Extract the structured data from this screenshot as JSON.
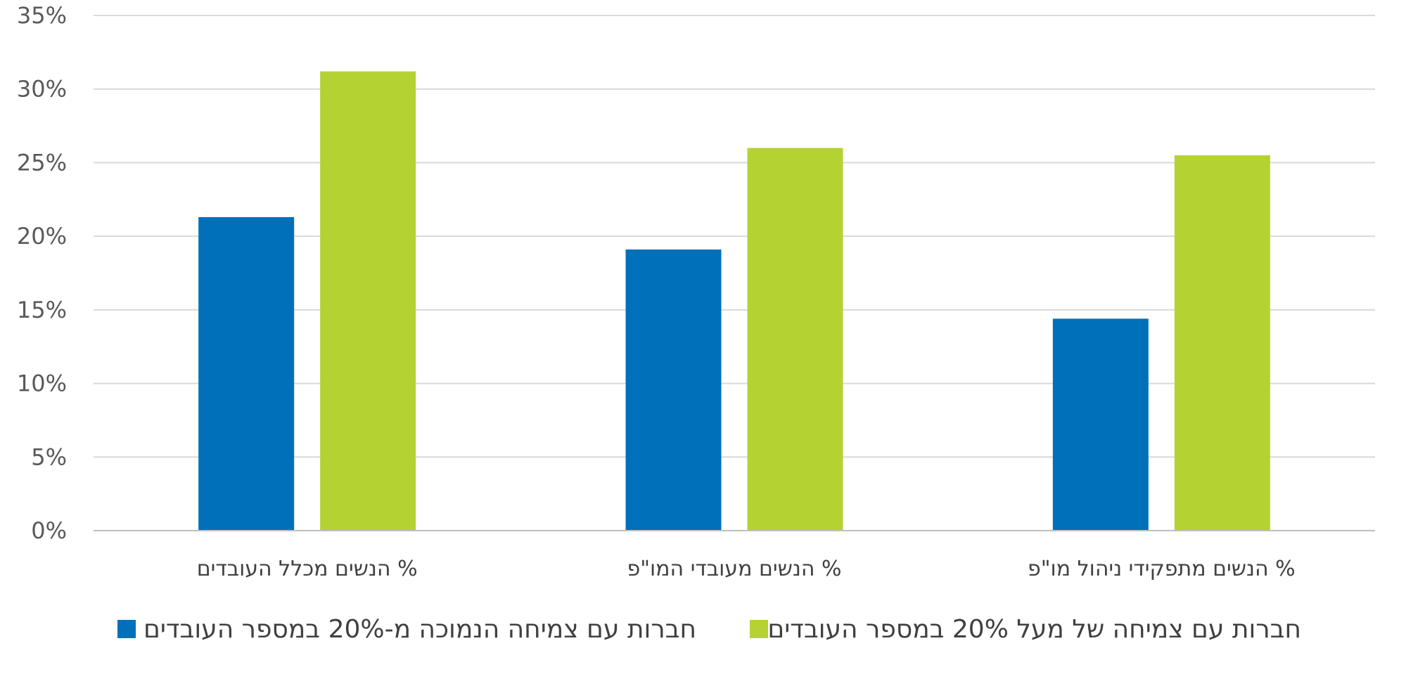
{
  "chart_data": {
    "type": "bar",
    "categories": [
      "% הנשים מכלל העובדים",
      "% הנשים מעובדי המו\"פ",
      "% הנשים מתפקידי ניהול מו\"פ"
    ],
    "series": [
      {
        "name": "חברות עם צמיחה הנמוכה מ-20% במספר העובדים",
        "values": [
          21.3,
          19.1,
          14.4
        ],
        "color": "#0070BA"
      },
      {
        "name": "חברות עם צמיחה של מעל 20% במספר העובדים",
        "values": [
          31.2,
          26.0,
          25.5
        ],
        "color": "#B4D333"
      }
    ],
    "y_ticks": [
      "0%",
      "5%",
      "10%",
      "15%",
      "20%",
      "25%",
      "30%",
      "35%"
    ],
    "ylim": [
      0,
      35
    ],
    "y_step": 5,
    "grid": true,
    "legend_position": "bottom"
  }
}
